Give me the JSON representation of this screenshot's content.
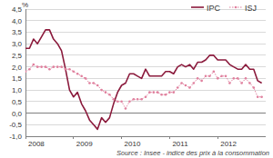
{
  "chart_data": {
    "type": "line",
    "y_label": "%",
    "annotations": [
      "Source : Insee - indice des prix à la consommation"
    ],
    "x": [
      2008,
      2008.083,
      2008.167,
      2008.25,
      2008.333,
      2008.417,
      2008.5,
      2008.583,
      2008.667,
      2008.75,
      2008.833,
      2008.917,
      2009,
      2009.083,
      2009.167,
      2009.25,
      2009.333,
      2009.417,
      2009.5,
      2009.583,
      2009.667,
      2009.75,
      2009.833,
      2009.917,
      2010,
      2010.083,
      2010.167,
      2010.25,
      2010.333,
      2010.417,
      2010.5,
      2010.583,
      2010.667,
      2010.75,
      2010.833,
      2010.917,
      2011,
      2011.083,
      2011.167,
      2011.25,
      2011.333,
      2011.417,
      2011.5,
      2011.583,
      2011.667,
      2011.75,
      2011.833,
      2011.917,
      2012,
      2012.083,
      2012.167,
      2012.25,
      2012.333,
      2012.417,
      2012.5,
      2012.583,
      2012.667,
      2012.75,
      2012.833,
      2012.917
    ],
    "series": [
      {
        "name": "IPC",
        "color": "#8b1a3c",
        "line_style": "solid",
        "values": [
          2.8,
          2.8,
          3.2,
          3.0,
          3.3,
          3.6,
          3.6,
          3.2,
          3.0,
          2.7,
          1.9,
          1.0,
          0.7,
          0.9,
          0.4,
          0.1,
          -0.3,
          -0.5,
          -0.7,
          -0.2,
          -0.4,
          -0.2,
          0.4,
          0.9,
          1.2,
          1.3,
          1.7,
          1.7,
          1.6,
          1.5,
          1.9,
          1.6,
          1.6,
          1.6,
          1.6,
          1.8,
          1.8,
          1.7,
          2.0,
          2.1,
          2.0,
          2.1,
          1.9,
          2.2,
          2.2,
          2.3,
          2.5,
          2.5,
          2.3,
          2.3,
          2.3,
          2.1,
          2.0,
          1.9,
          1.9,
          2.1,
          1.9,
          1.9,
          1.4,
          1.3
        ]
      },
      {
        "name": "ISJ",
        "color": "#e0809e",
        "line_style": "dotted",
        "marker": "circle",
        "values": [
          1.8,
          1.9,
          2.1,
          2.0,
          2.0,
          2.0,
          1.9,
          2.0,
          2.0,
          2.0,
          1.9,
          1.9,
          1.8,
          1.7,
          1.6,
          1.5,
          1.3,
          1.3,
          1.2,
          1.0,
          0.9,
          0.8,
          0.6,
          0.5,
          0.5,
          0.2,
          0.5,
          0.6,
          0.6,
          0.6,
          0.7,
          0.9,
          0.9,
          0.9,
          0.8,
          0.8,
          0.9,
          0.9,
          1.1,
          1.3,
          1.2,
          1.1,
          1.3,
          1.5,
          1.4,
          1.6,
          1.6,
          1.8,
          1.5,
          1.6,
          1.6,
          1.3,
          1.5,
          1.5,
          1.3,
          1.5,
          1.3,
          1.1,
          0.7,
          0.7
        ]
      }
    ],
    "xlim": [
      2008,
      2013
    ],
    "xticks": [
      2008,
      2009,
      2010,
      2011,
      2012
    ],
    "ylim": [
      -1.0,
      4.5
    ],
    "yticks": [
      {
        "value": -1.0,
        "label": "-1,0"
      },
      {
        "value": -0.5,
        "label": "-0,5"
      },
      {
        "value": 0,
        "label": "0,0"
      },
      {
        "value": 0.5,
        "label": "0,5"
      },
      {
        "value": 1.0,
        "label": "1,0"
      },
      {
        "value": 1.5,
        "label": "1,5"
      },
      {
        "value": 2.0,
        "label": "2,0"
      },
      {
        "value": 2.5,
        "label": "2,5"
      },
      {
        "value": 3.0,
        "label": "3,0"
      },
      {
        "value": 3.5,
        "label": "3,5"
      },
      {
        "value": 4.0,
        "label": "4,0"
      },
      {
        "value": 4.5,
        "label": "4,5"
      }
    ],
    "grid": true,
    "legend": "top-right"
  }
}
